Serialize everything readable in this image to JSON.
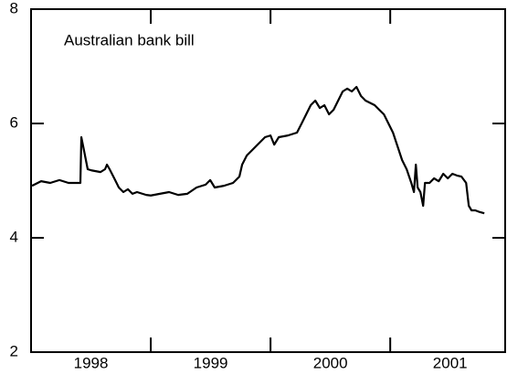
{
  "chart_data": {
    "type": "line",
    "annotation": "Australian bank bill",
    "color": "#000000",
    "xlim": [
      1998,
      2001.96
    ],
    "ylim": [
      2,
      8
    ],
    "yticks": [
      2,
      4,
      6,
      8
    ],
    "xticks": [
      {
        "value": 1998.5,
        "label": "1998"
      },
      {
        "value": 1999.5,
        "label": "1999"
      },
      {
        "value": 2000.5,
        "label": "2000"
      },
      {
        "value": 2001.5,
        "label": "2001"
      }
    ],
    "xtick_marks": [
      1999,
      2000,
      2001
    ],
    "x": [
      1998.008,
      1998.084,
      1998.16,
      1998.237,
      1998.313,
      1998.397,
      1998.412,
      1998.42,
      1998.443,
      1998.473,
      1998.504,
      1998.58,
      1998.618,
      1998.634,
      1998.656,
      1998.695,
      1998.733,
      1998.771,
      1998.809,
      1998.847,
      1998.885,
      1998.962,
      1999.0,
      1999.076,
      1999.153,
      1999.229,
      1999.305,
      1999.382,
      1999.458,
      1999.496,
      1999.534,
      1999.611,
      1999.687,
      1999.74,
      1999.763,
      1999.802,
      1999.878,
      1999.916,
      1999.954,
      2000.0,
      2000.031,
      2000.069,
      2000.145,
      2000.221,
      2000.26,
      2000.298,
      2000.336,
      2000.374,
      2000.412,
      2000.45,
      2000.489,
      2000.527,
      2000.565,
      2000.603,
      2000.641,
      2000.679,
      2000.718,
      2000.756,
      2000.794,
      2000.87,
      2000.908,
      2000.947,
      2000.985,
      2001.023,
      2001.061,
      2001.099,
      2001.137,
      2001.176,
      2001.198,
      2001.214,
      2001.229,
      2001.252,
      2001.275,
      2001.29,
      2001.328,
      2001.366,
      2001.405,
      2001.443,
      2001.481,
      2001.519,
      2001.557,
      2001.595,
      2001.634,
      2001.656,
      2001.679,
      2001.71,
      2001.748,
      2001.786
    ],
    "values": [
      4.91,
      4.99,
      4.96,
      5.01,
      4.96,
      4.96,
      4.96,
      5.76,
      5.52,
      5.2,
      5.18,
      5.15,
      5.2,
      5.28,
      5.2,
      5.04,
      4.88,
      4.8,
      4.85,
      4.77,
      4.8,
      4.75,
      4.74,
      4.77,
      4.8,
      4.75,
      4.77,
      4.88,
      4.93,
      5.01,
      4.88,
      4.91,
      4.96,
      5.07,
      5.28,
      5.44,
      5.6,
      5.68,
      5.76,
      5.79,
      5.63,
      5.76,
      5.79,
      5.84,
      6.0,
      6.16,
      6.32,
      6.4,
      6.27,
      6.32,
      6.16,
      6.24,
      6.4,
      6.56,
      6.61,
      6.56,
      6.64,
      6.48,
      6.4,
      6.32,
      6.24,
      6.16,
      6.0,
      5.84,
      5.6,
      5.36,
      5.2,
      4.96,
      4.8,
      5.28,
      4.88,
      4.8,
      4.56,
      4.96,
      4.96,
      5.04,
      4.99,
      5.12,
      5.04,
      5.12,
      5.09,
      5.07,
      4.96,
      4.56,
      4.48,
      4.48,
      4.45,
      4.43
    ]
  }
}
